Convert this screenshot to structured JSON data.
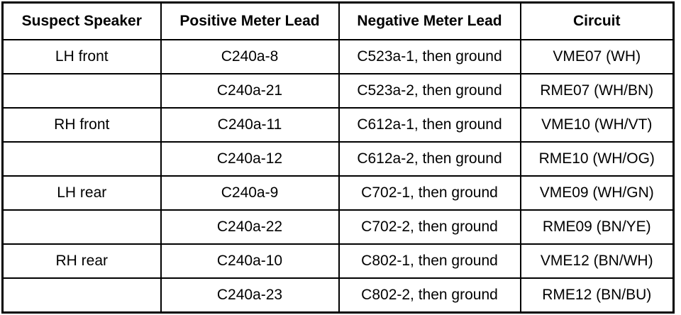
{
  "table": {
    "header": [
      "Suspect Speaker",
      "Positive Meter Lead",
      "Negative Meter Lead",
      "Circuit"
    ],
    "rows": [
      [
        "LH front",
        "C240a-8",
        "C523a-1, then ground",
        "VME07 (WH)"
      ],
      [
        null,
        "C240a-21",
        "C523a-2, then ground",
        "RME07 (WH/BN)"
      ],
      [
        "RH front",
        "C240a-11",
        "C612a-1, then ground",
        "VME10 (WH/VT)"
      ],
      [
        null,
        "C240a-12",
        "C612a-2, then ground",
        "RME10 (WH/OG)"
      ],
      [
        "LH rear",
        "C240a-9",
        "C702-1, then ground",
        "VME09 (WH/GN)"
      ],
      [
        null,
        "C240a-22",
        "C702-2, then ground",
        "RME09 (BN/YE)"
      ],
      [
        "RH rear",
        "C240a-10",
        "C802-1, then ground",
        "VME12 (BN/WH)"
      ],
      [
        null,
        "C240a-23",
        "C802-2, then ground",
        "RME12 (BN/BU)"
      ]
    ]
  }
}
